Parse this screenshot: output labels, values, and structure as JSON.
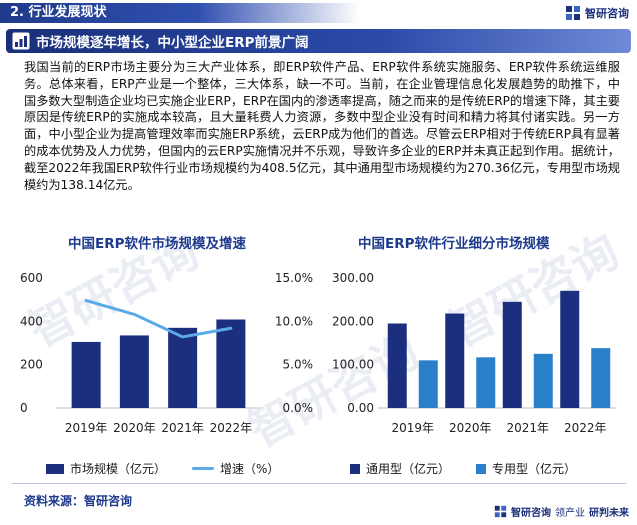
{
  "header": {
    "section_label": "2. 行业发展现状",
    "brand_name": "智研咨询"
  },
  "banner": {
    "title": "市场规模逐年增长，中小型企业ERP前景广阔"
  },
  "paragraph": "我国当前的ERP市场主要分为三大产业体系，即ERP软件产品、ERP软件系统实施服务、ERP软件系统运维服务。总体来看，ERP产业是一个整体，三大体系，缺一不可。当前，在企业管理信息化发展趋势的助推下，中国多数大型制造企业均已实施企业ERP，ERP在国内的渗透率提高，随之而来的是传统ERP的增速下降，其主要原因是传统ERP的实施成本较高，且大量耗费人力资源，多数中型企业没有时间和精力将其付诸实践。另一方面，中小型企业为提高管理效率而实施ERP系统，云ERP成为他们的首选。尽管云ERP相对于传统ERP具有显著的成本优势及人力优势，但国内的云ERP实施情况并不乐观，导致许多企业的ERP并未真正起到作用。据统计，截至2022年我国ERP软件行业市场规模约为408.5亿元，其中通用型市场规模约为270.36亿元，专用型市场规模约为138.14亿元。",
  "watermark_text": "智研咨询",
  "footer": {
    "source": "资料来源：智研咨询",
    "brand_name": "智研咨询",
    "brand_slogan_a": "领产业",
    "brand_slogan_b": "研判未来"
  },
  "colors": {
    "navy": "#1b2f7e",
    "mid_blue": "#2a7fc9",
    "line_blue": "#5aaae8",
    "title_blue": "#1d3a8c"
  },
  "chart_data": [
    {
      "type": "bar",
      "title": "中国ERP软件市场规模及增速",
      "categories": [
        "2019年",
        "2020年",
        "2021年",
        "2022年"
      ],
      "series": [
        {
          "name": "市场规模（亿元）",
          "type": "bar",
          "axis": "left",
          "values": [
            305,
            335,
            370,
            408.5
          ]
        },
        {
          "name": "增速（%）",
          "type": "line",
          "axis": "right",
          "values": [
            12.4,
            10.8,
            8.2,
            9.2
          ]
        }
      ],
      "y_left": {
        "ticks": [
          "0",
          "200",
          "400",
          "600"
        ],
        "ylim": [
          0,
          600
        ]
      },
      "y_right": {
        "ticks": [
          "0.0%",
          "5.0%",
          "10.0%",
          "15.0%"
        ],
        "ylim": [
          0,
          15
        ]
      },
      "grid": false,
      "legend_position": "bottom"
    },
    {
      "type": "bar",
      "title": "中国ERP软件行业细分市场规模",
      "categories": [
        "2019年",
        "2020年",
        "2021年",
        "2022年"
      ],
      "series": [
        {
          "name": "通用型（亿元）",
          "values": [
            195,
            218,
            245,
            270.36
          ]
        },
        {
          "name": "专用型（亿元）",
          "values": [
            110,
            117,
            125,
            138.14
          ]
        }
      ],
      "y_left": {
        "ticks": [
          "0.00",
          "100.00",
          "200.00",
          "300.00"
        ],
        "ylim": [
          0,
          300
        ]
      },
      "grid": false,
      "legend_position": "bottom"
    }
  ]
}
